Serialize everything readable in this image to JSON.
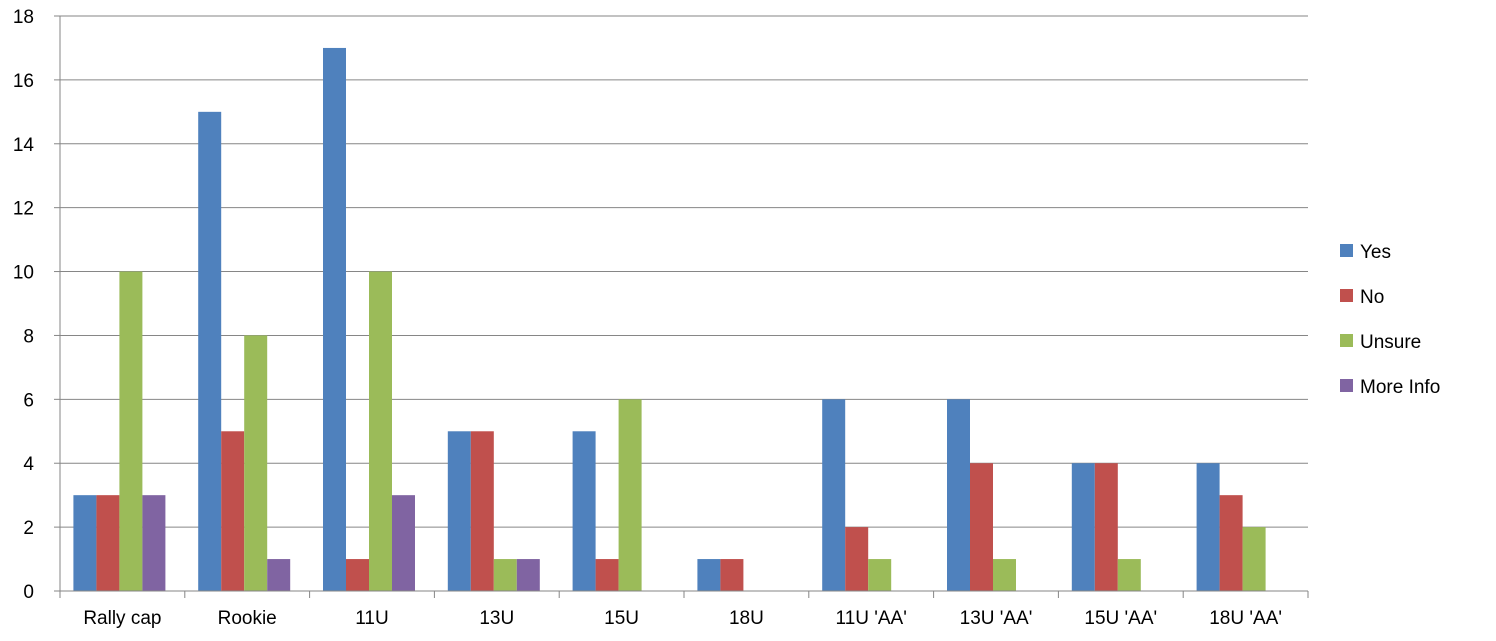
{
  "chart_data": {
    "type": "bar",
    "title": "",
    "xlabel": "",
    "ylabel": "",
    "ylim": [
      0,
      18
    ],
    "yticks": [
      0,
      2,
      4,
      6,
      8,
      10,
      12,
      14,
      16,
      18
    ],
    "grid": true,
    "legend_position": "right",
    "categories": [
      "Rally cap",
      "Rookie",
      "11U",
      "13U",
      "15U",
      "18U",
      "11U 'AA'",
      "13U 'AA'",
      "15U 'AA'",
      "18U 'AA'"
    ],
    "series": [
      {
        "name": "Yes",
        "color": "#4F81BD",
        "values": [
          3,
          15,
          17,
          5,
          5,
          1,
          6,
          6,
          4,
          4
        ]
      },
      {
        "name": "No",
        "color": "#C0504D",
        "values": [
          3,
          5,
          1,
          5,
          1,
          1,
          2,
          4,
          4,
          3
        ]
      },
      {
        "name": "Unsure",
        "color": "#9BBB59",
        "values": [
          10,
          8,
          10,
          1,
          6,
          0,
          1,
          1,
          1,
          2
        ]
      },
      {
        "name": "More Info",
        "color": "#8064A2",
        "values": [
          3,
          1,
          3,
          1,
          0,
          0,
          0,
          0,
          0,
          0
        ]
      }
    ]
  }
}
